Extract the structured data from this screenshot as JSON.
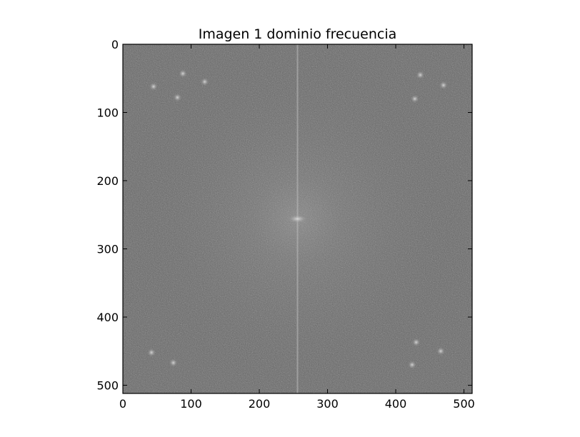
{
  "figure": {
    "title": "Imagen 1 dominio frecuencia",
    "image_description_kind": "2D FFT magnitude spectrum (grayscale)"
  },
  "axes": {
    "x_ticks": [
      "0",
      "100",
      "200",
      "300",
      "400",
      "500"
    ],
    "y_ticks": [
      "0",
      "100",
      "200",
      "300",
      "400",
      "500"
    ],
    "x_range": [
      0,
      512
    ],
    "y_range": [
      0,
      512
    ],
    "y_inverted": true
  },
  "spectrum": {
    "colormap": "gray",
    "center": [
      256,
      256
    ],
    "bright_center_peak": [
      256,
      256
    ],
    "vertical_line_x": 256,
    "bright_spots": [
      [
        45,
        62
      ],
      [
        88,
        43
      ],
      [
        80,
        78
      ],
      [
        120,
        55
      ],
      [
        436,
        45
      ],
      [
        470,
        60
      ],
      [
        428,
        80
      ],
      [
        42,
        452
      ],
      [
        74,
        467
      ],
      [
        430,
        437
      ],
      [
        466,
        450
      ],
      [
        424,
        470
      ]
    ],
    "colors": {
      "base_gray": "#6a6a6a",
      "dark_gray": "#404040",
      "bright": "#d8d8d8"
    }
  }
}
